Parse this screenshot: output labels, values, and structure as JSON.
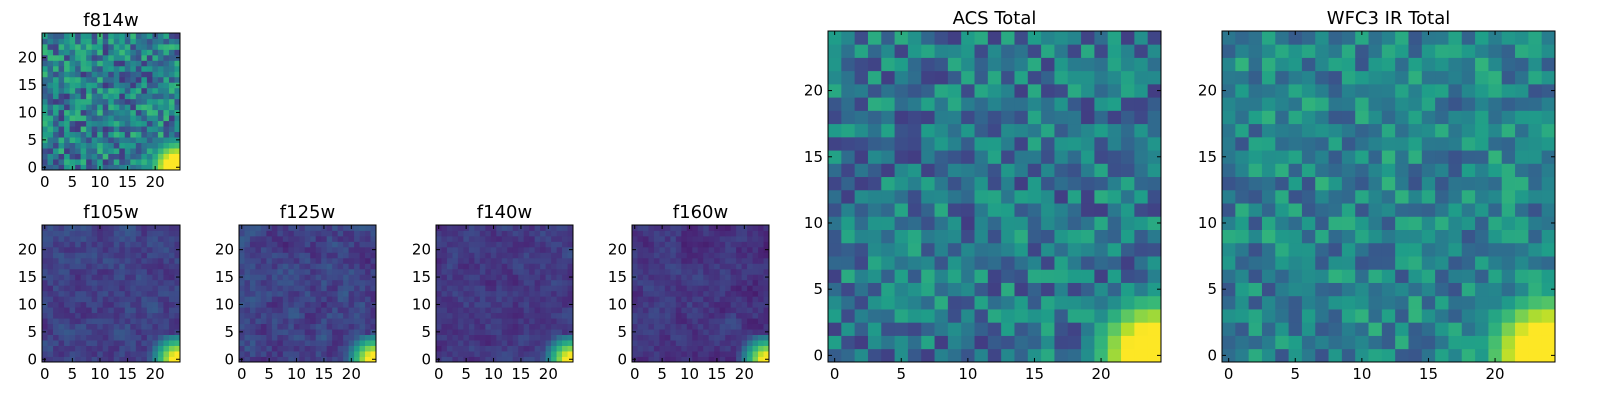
{
  "chart_data": [
    {
      "type": "heatmap",
      "title": "f814w",
      "xticks": [
        0,
        5,
        10,
        15,
        20
      ],
      "yticks": [
        0,
        5,
        10,
        15,
        20
      ],
      "xlim": [
        0,
        24
      ],
      "ylim": [
        0,
        24
      ],
      "colormap": "viridis",
      "grid": false,
      "seed": 11,
      "base": 0.42,
      "spread": 0.26,
      "smooth": 0,
      "hot_corner": "bottom-right"
    },
    {
      "type": "heatmap",
      "title": "f105w",
      "xticks": [
        0,
        5,
        10,
        15,
        20
      ],
      "yticks": [
        0,
        5,
        10,
        15,
        20
      ],
      "xlim": [
        0,
        24
      ],
      "ylim": [
        0,
        24
      ],
      "colormap": "viridis",
      "grid": false,
      "seed": 23,
      "base": 0.2,
      "spread": 0.14,
      "smooth": 1,
      "hot_corner": "bottom-right"
    },
    {
      "type": "heatmap",
      "title": "f125w",
      "xticks": [
        0,
        5,
        10,
        15,
        20
      ],
      "yticks": [
        0,
        5,
        10,
        15,
        20
      ],
      "xlim": [
        0,
        24
      ],
      "ylim": [
        0,
        24
      ],
      "colormap": "viridis",
      "grid": false,
      "seed": 37,
      "base": 0.2,
      "spread": 0.16,
      "smooth": 1,
      "hot_corner": "bottom-right"
    },
    {
      "type": "heatmap",
      "title": "f140w",
      "xticks": [
        0,
        5,
        10,
        15,
        20
      ],
      "yticks": [
        0,
        5,
        10,
        15,
        20
      ],
      "xlim": [
        0,
        24
      ],
      "ylim": [
        0,
        24
      ],
      "colormap": "viridis",
      "grid": false,
      "seed": 41,
      "base": 0.17,
      "spread": 0.12,
      "smooth": 1,
      "hot_corner": "bottom-right"
    },
    {
      "type": "heatmap",
      "title": "f160w",
      "xticks": [
        0,
        5,
        10,
        15,
        20
      ],
      "yticks": [
        0,
        5,
        10,
        15,
        20
      ],
      "xlim": [
        0,
        24
      ],
      "ylim": [
        0,
        24
      ],
      "colormap": "viridis",
      "grid": false,
      "seed": 53,
      "base": 0.16,
      "spread": 0.12,
      "smooth": 1,
      "hot_corner": "bottom-right"
    },
    {
      "type": "heatmap",
      "title": "ACS Total",
      "xticks": [
        0,
        5,
        10,
        15,
        20
      ],
      "yticks": [
        0,
        5,
        10,
        15,
        20
      ],
      "xlim": [
        0,
        24
      ],
      "ylim": [
        0,
        24
      ],
      "colormap": "viridis",
      "grid": false,
      "seed": 67,
      "base": 0.4,
      "spread": 0.22,
      "smooth": 0,
      "hot_corner": "bottom-right"
    },
    {
      "type": "heatmap",
      "title": "WFC3 IR Total",
      "xticks": [
        0,
        5,
        10,
        15,
        20
      ],
      "yticks": [
        0,
        5,
        10,
        15,
        20
      ],
      "xlim": [
        0,
        24
      ],
      "ylim": [
        0,
        24
      ],
      "colormap": "viridis",
      "grid": false,
      "seed": 79,
      "base": 0.45,
      "spread": 0.2,
      "smooth": 0,
      "hot_corner": "bottom-right"
    }
  ]
}
